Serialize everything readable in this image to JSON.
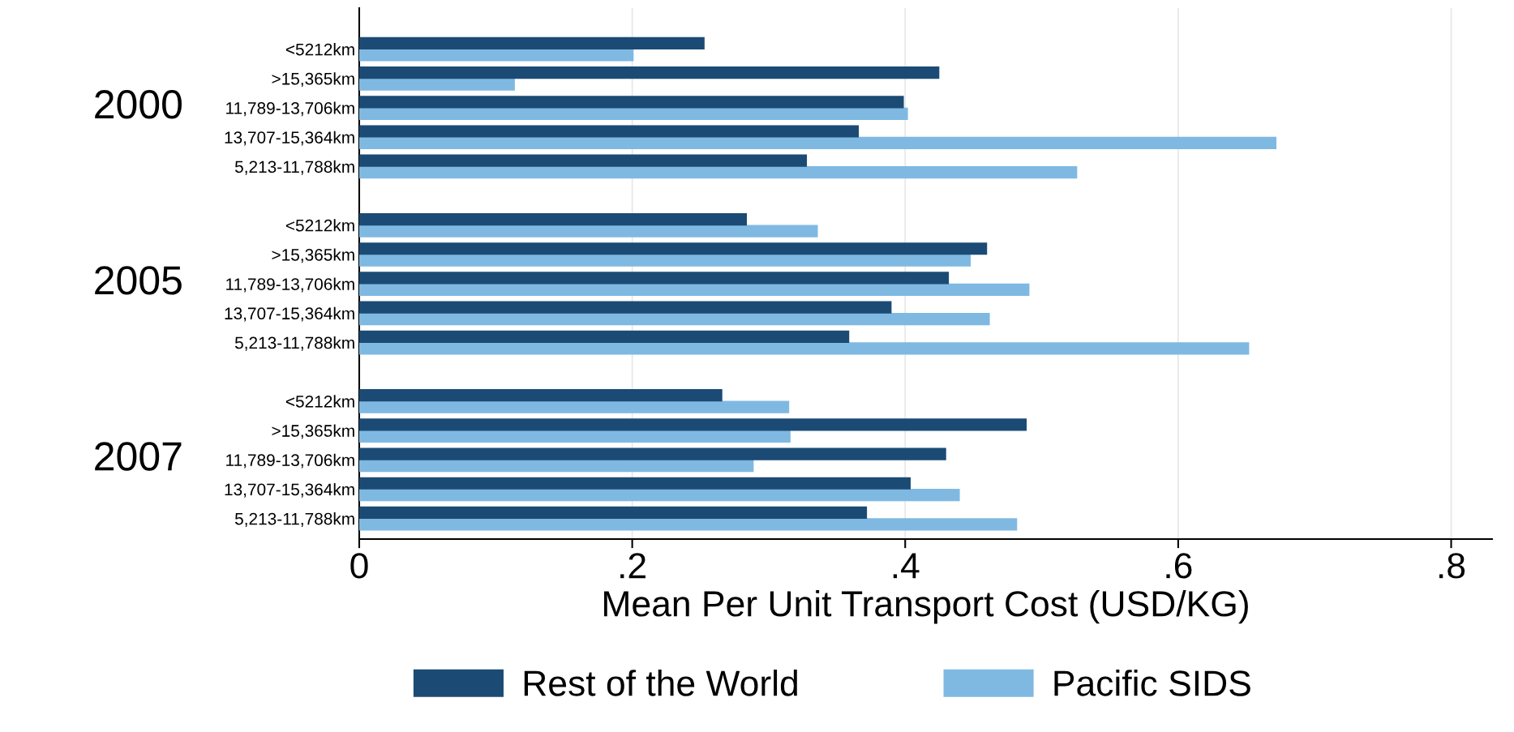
{
  "chart_data": {
    "type": "bar",
    "orientation": "horizontal",
    "xlabel": "Mean Per Unit Transport Cost (USD/KG)",
    "categories": [
      "<5212km",
      ">15,365km",
      "11,789-13,706km",
      "13,707-15,364km",
      "5,213-11,788km",
      null,
      "<5212km",
      ">15,365km",
      "11,789-13,706km",
      "13,707-15,364km",
      "5,213-11,788km",
      null,
      "<5212km",
      ">15,365km",
      "11,789-13,706km",
      "13,707-15,364km",
      "5,213-11,788km"
    ],
    "series": [
      {
        "name": "Rest of the World",
        "color": "#1b4b75",
        "values": [
          0.253,
          0.425,
          0.399,
          0.366,
          0.328,
          null,
          0.284,
          0.46,
          0.432,
          0.39,
          0.359,
          null,
          0.266,
          0.489,
          0.43,
          0.404,
          0.372
        ]
      },
      {
        "name": "Pacific SIDS",
        "color": "#7fb9e2",
        "values": [
          0.201,
          0.114,
          0.402,
          0.672,
          0.526,
          null,
          0.336,
          0.448,
          0.491,
          0.462,
          0.652,
          null,
          0.315,
          0.316,
          0.289,
          0.44,
          0.482
        ]
      }
    ],
    "annotations": [
      "2000",
      "2005",
      "2007"
    ],
    "xlim": [
      0,
      0.83
    ],
    "xticks": [
      0,
      {
        "value": 0.2,
        "label": ".2"
      },
      {
        "value": 0.4,
        "label": ".4"
      },
      {
        "value": 0.6,
        "label": ".6"
      },
      {
        "value": 0.8,
        "label": ".8"
      }
    ],
    "grid": "x",
    "legend": "bottom"
  }
}
